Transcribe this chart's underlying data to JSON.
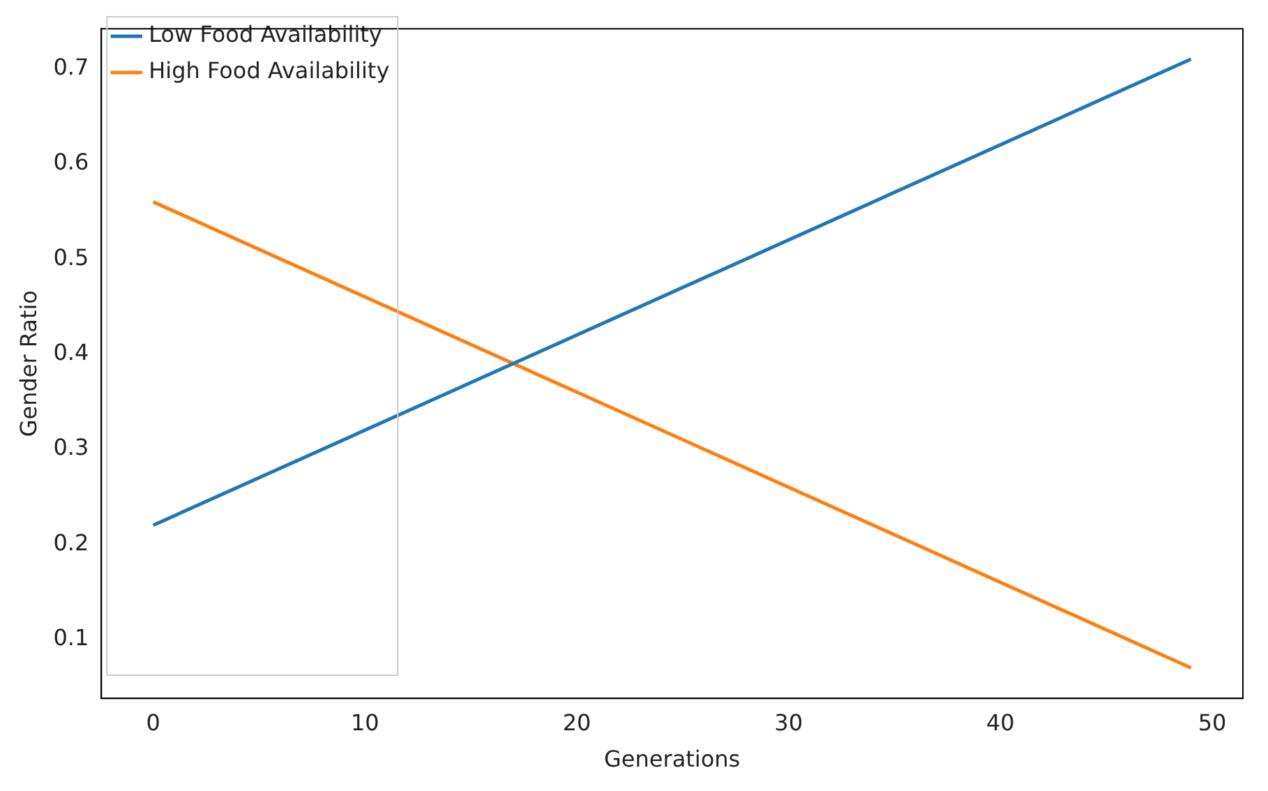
{
  "chart_data": {
    "type": "line",
    "xlabel": "Generations",
    "ylabel": "Gender Ratio",
    "x": [
      0,
      49
    ],
    "series": [
      {
        "name": "Low Food Availability",
        "color": "#1f77b4",
        "values": [
          0.22,
          0.71
        ]
      },
      {
        "name": "High Food Availability",
        "color": "#ff7f0e",
        "values": [
          0.56,
          0.07
        ]
      }
    ],
    "xlim": [
      -2.45,
      51.45
    ],
    "xticks": [
      0,
      10,
      20,
      30,
      40,
      50
    ],
    "ylim": [
      0.038,
      0.742
    ],
    "yticks": [
      0.1,
      0.2,
      0.3,
      0.4,
      0.5,
      0.6,
      0.7
    ],
    "grid": false,
    "legend": "top left",
    "marker": "none",
    "line_style": "solid"
  }
}
